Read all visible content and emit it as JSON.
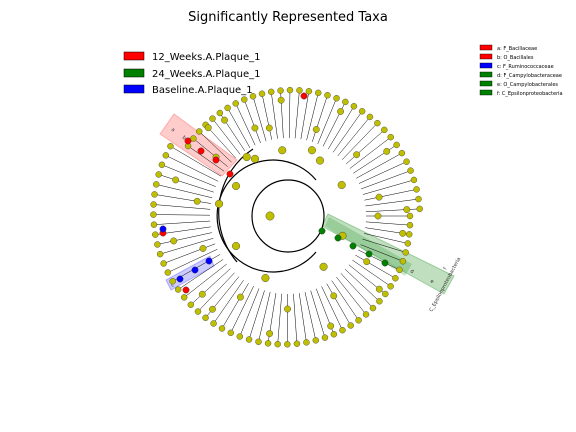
{
  "chart_data": {
    "type": "cladogram",
    "title": "Significantly Represented Taxa",
    "classes": [
      {
        "name": "12_Weeks.A.Plaque_1",
        "color": "#ff0000"
      },
      {
        "name": "24_Weeks.A.Plaque_1",
        "color": "#008000"
      },
      {
        "name": "Baseline.A.Plaque_1",
        "color": "#0000ff"
      }
    ],
    "clades": [
      {
        "key": "a",
        "taxon": "F_Bacillaceae",
        "label": "a: F_Bacillaceae",
        "class": "12_Weeks.A.Plaque_1"
      },
      {
        "key": "b",
        "taxon": "O_Bacillales",
        "label": "b: O_Bacillales",
        "class": "12_Weeks.A.Plaque_1"
      },
      {
        "key": "c",
        "taxon": "F_Ruminococcaceae",
        "label": "c: F_Ruminococcaceae",
        "class": "Baseline.A.Plaque_1"
      },
      {
        "key": "d",
        "taxon": "F_Campylobacteraceae",
        "label": "d: F_Campylobacteraceae",
        "class": "24_Weeks.A.Plaque_1"
      },
      {
        "key": "e",
        "taxon": "O_Campylobacterales",
        "label": "e: O_Campylobacterales",
        "class": "24_Weeks.A.Plaque_1"
      },
      {
        "key": "f",
        "taxon": "C_Epsilonproteobacteria",
        "label": "f: C_Epsilonproteobacteria",
        "class": "24_Weeks.A.Plaque_1"
      }
    ],
    "highlight_labels": [
      "a",
      "b",
      "c",
      "d",
      "e",
      "f"
    ],
    "node_color": "#bfbf00"
  }
}
